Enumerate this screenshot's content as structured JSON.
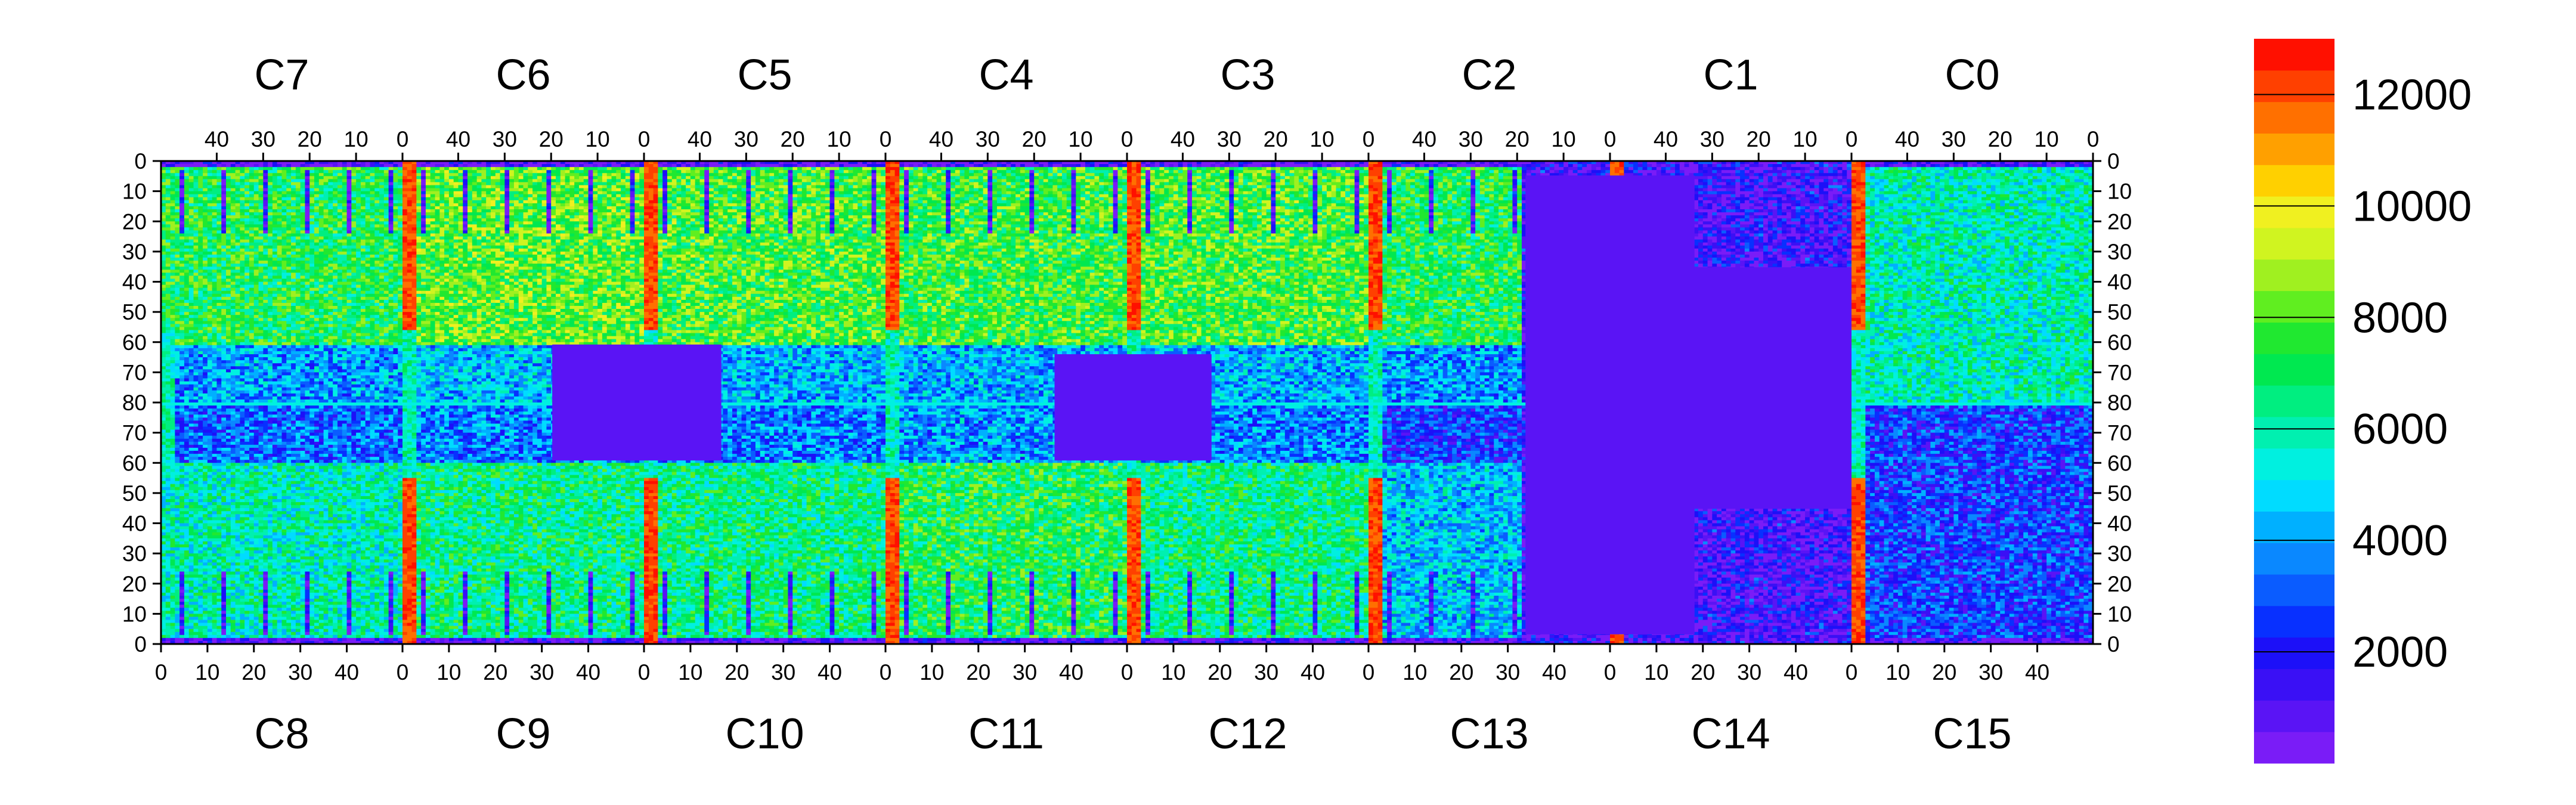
{
  "chart_data": {
    "type": "heatmap",
    "chips_top": [
      "C7",
      "C6",
      "C5",
      "C4",
      "C3",
      "C2",
      "C1",
      "C0"
    ],
    "chips_bottom": [
      "C8",
      "C9",
      "C10",
      "C11",
      "C12",
      "C13",
      "C14",
      "C15"
    ],
    "top_tick_labels": [
      "40",
      "30",
      "20",
      "10",
      "0"
    ],
    "bottom_tick_labels": [
      "0",
      "10",
      "20",
      "30",
      "40"
    ],
    "y_tick_labels": [
      "0",
      "10",
      "20",
      "30",
      "40",
      "50",
      "60",
      "70",
      "80",
      "70",
      "60",
      "50",
      "40",
      "30",
      "20",
      "10",
      "0"
    ],
    "columns_per_chip": 52,
    "rows": 160,
    "colorbar": {
      "min": 0,
      "max": 13000,
      "labels": [
        {
          "value": 2000,
          "text": "2000"
        },
        {
          "value": 4000,
          "text": "4000"
        },
        {
          "value": 6000,
          "text": "6000"
        },
        {
          "value": 8000,
          "text": "8000"
        },
        {
          "value": 10000,
          "text": "10000"
        },
        {
          "value": 12000,
          "text": "12000"
        }
      ],
      "palette": [
        "#7a1cf7",
        "#5a14f5",
        "#3a10f5",
        "#1c10f8",
        "#0830ff",
        "#0a5cff",
        "#0a88ff",
        "#00b0ff",
        "#00dcff",
        "#00f0e0",
        "#00f0b0",
        "#00ee80",
        "#00e850",
        "#20e830",
        "#60ee20",
        "#a0f020",
        "#d0f420",
        "#f0f020",
        "#ffd000",
        "#ffa000",
        "#ff7000",
        "#ff4000",
        "#ff1000"
      ]
    },
    "chip_mean_levels_top": [
      0.55,
      0.62,
      0.6,
      0.58,
      0.6,
      0.55,
      0.3,
      0.45
    ],
    "chip_mean_levels_bottom": [
      0.45,
      0.5,
      0.5,
      0.55,
      0.5,
      0.35,
      0.15,
      0.2
    ],
    "hot_column_chips": [
      "C6",
      "C5",
      "C4",
      "C3",
      "C2",
      "C1",
      "C0"
    ],
    "grid": false,
    "legend": "colorbar-right"
  }
}
